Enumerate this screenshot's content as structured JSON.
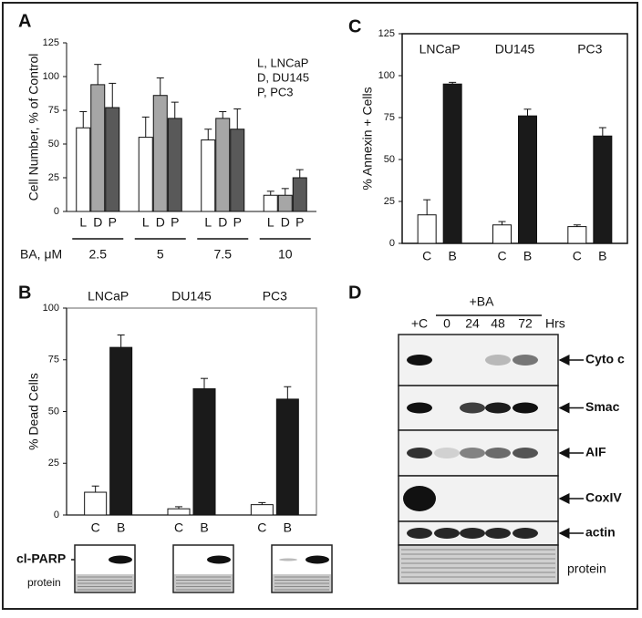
{
  "chart_data": [
    {
      "type": "bar",
      "panel": "A",
      "ylabel": "Cell Number, % of Control",
      "xlabel": "BA, μM",
      "categories": [
        "2.5",
        "5",
        "7.5",
        "10"
      ],
      "series": [
        {
          "name": "L",
          "color": "#ffffff",
          "values": [
            62,
            55,
            53,
            12
          ],
          "errors": [
            12,
            15,
            8,
            3
          ]
        },
        {
          "name": "D",
          "color": "#a6a6a6",
          "values": [
            94,
            86,
            69,
            12
          ],
          "errors": [
            15,
            13,
            5,
            5
          ]
        },
        {
          "name": "P",
          "color": "#595959",
          "values": [
            77,
            69,
            61,
            25
          ],
          "errors": [
            18,
            12,
            15,
            6
          ]
        }
      ],
      "legend": [
        "L, LNCaP",
        "D, DU145",
        "P, PC3"
      ],
      "ylim": [
        0,
        125
      ],
      "yticks": [
        0,
        25,
        50,
        75,
        100,
        125
      ]
    },
    {
      "type": "bar",
      "panel": "B",
      "ylabel": "% Dead Cells",
      "categories": [
        "LNCaP",
        "DU145",
        "PC3"
      ],
      "series": [
        {
          "name": "C",
          "color": "#ffffff",
          "values": [
            11,
            3,
            5
          ],
          "errors": [
            3,
            1,
            1
          ]
        },
        {
          "name": "B",
          "color": "#1a1a1a",
          "values": [
            81,
            61,
            56
          ],
          "errors": [
            6,
            5,
            6
          ]
        }
      ],
      "ylim": [
        0,
        100
      ],
      "yticks": [
        0,
        25,
        50,
        75,
        100
      ]
    },
    {
      "type": "bar",
      "panel": "C",
      "ylabel": "% Annexin + Cells",
      "categories": [
        "LNCaP",
        "DU145",
        "PC3"
      ],
      "series": [
        {
          "name": "C",
          "color": "#ffffff",
          "values": [
            17,
            11,
            10
          ],
          "errors": [
            9,
            2,
            1
          ]
        },
        {
          "name": "B",
          "color": "#1a1a1a",
          "values": [
            95,
            76,
            64
          ],
          "errors": [
            1,
            4,
            5
          ]
        }
      ],
      "ylim": [
        0,
        125
      ],
      "yticks": [
        0,
        25,
        50,
        75,
        100,
        125
      ]
    }
  ],
  "blots": {
    "parp": {
      "band": "cl-PARP",
      "loading": "protein"
    },
    "time_course": {
      "panel": "D",
      "treatment": "+BA",
      "lanes": [
        "+C",
        "0",
        "24",
        "48",
        "72"
      ],
      "unit": "Hrs",
      "rows": [
        "Cyto c",
        "Smac",
        "AIF",
        "CoxIV",
        "actin",
        "protein"
      ]
    }
  }
}
